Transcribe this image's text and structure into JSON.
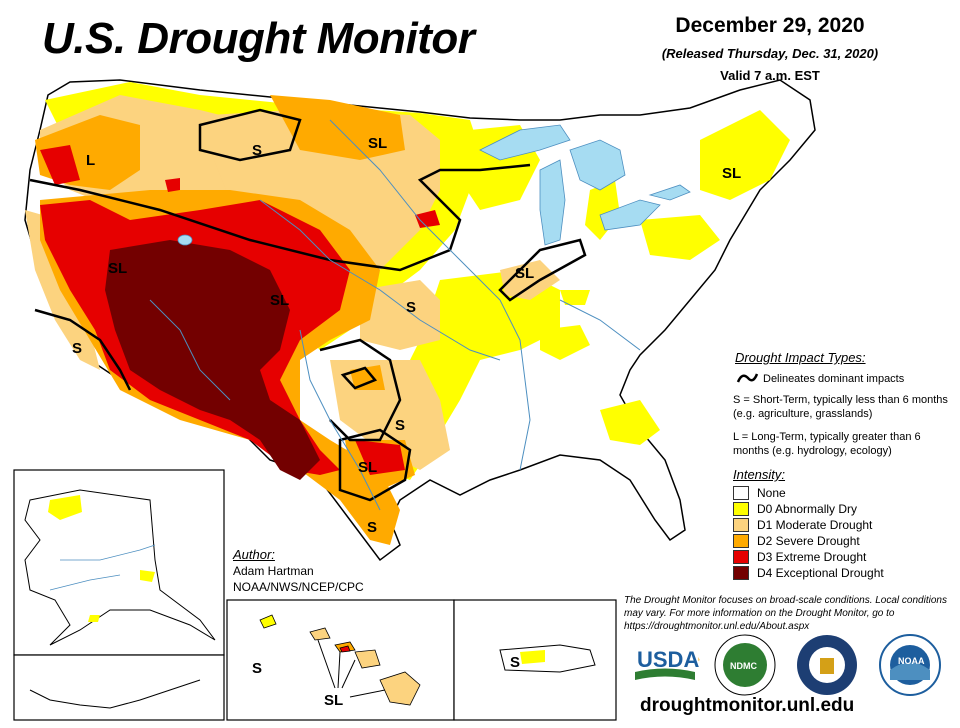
{
  "header": {
    "title": "U.S. Drought Monitor",
    "date": "December 29, 2020",
    "released": "(Released Thursday, Dec. 31, 2020)",
    "valid": "Valid 7 a.m. EST"
  },
  "impact_types": {
    "heading": "Drought Impact Types:",
    "delineates": "Delineates dominant impacts",
    "short_term": "S = Short-Term, typically less than 6 months (e.g. agriculture, grasslands)",
    "long_term": "L = Long-Term, typically greater than 6 months (e.g. hydrology, ecology)"
  },
  "intensity": {
    "heading": "Intensity:",
    "levels": [
      {
        "label": "None",
        "color": "#ffffff"
      },
      {
        "label": "D0 Abnormally Dry",
        "color": "#ffff00"
      },
      {
        "label": "D1 Moderate Drought",
        "color": "#fcd37f"
      },
      {
        "label": "D2 Severe Drought",
        "color": "#ffaa00"
      },
      {
        "label": "D3 Extreme Drought",
        "color": "#e60000"
      },
      {
        "label": "D4 Exceptional Drought",
        "color": "#730000"
      }
    ]
  },
  "map_labels": {
    "sl": "SL",
    "s": "S",
    "l": "L"
  },
  "author": {
    "heading": "Author:",
    "name": "Adam Hartman",
    "org": "NOAA/NWS/NCEP/CPC"
  },
  "disclaimer": "The Drought Monitor focuses on broad-scale conditions. Local conditions may vary. For more information on the Drought Monitor, go to https://droughtmonitor.unl.edu/About.aspx",
  "logos": {
    "usda": "USDA",
    "ndmc": "NDMC",
    "commerce": "DEPARTMENT OF COMMERCE",
    "noaa": "NOAA"
  },
  "website": "droughtmonitor.unl.edu"
}
